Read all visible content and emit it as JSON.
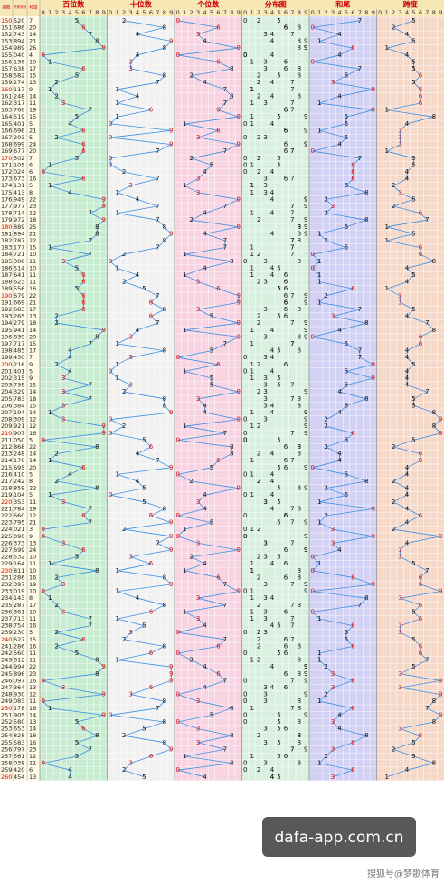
{
  "header": {
    "issue": "期数",
    "number": "开奖号码",
    "sum": "和值",
    "sections": [
      "百位数",
      "十位数",
      "个位数",
      "分布图",
      "和尾",
      "跨度"
    ],
    "columns": [
      0,
      1,
      2,
      3,
      4,
      5,
      6,
      7,
      8,
      9
    ]
  },
  "rows": [
    [
      150,
      [
        5,
        2,
        0
      ],
      7,
      7,
      5
    ],
    [
      151,
      [
        6,
        8,
        6
      ],
      20,
      0,
      2
    ],
    [
      152,
      [
        7,
        4,
        3
      ],
      14,
      4,
      4
    ],
    [
      153,
      [
        8,
        9,
        4
      ],
      21,
      1,
      5
    ],
    [
      154,
      [
        9,
        8,
        9
      ],
      26,
      6,
      1
    ],
    [
      155,
      [
        0,
        4,
        0
      ],
      4,
      4,
      4
    ],
    [
      156,
      [
        1,
        3,
        6
      ],
      10,
      0,
      5
    ],
    [
      157,
      [
        6,
        3,
        8
      ],
      17,
      7,
      5
    ],
    [
      158,
      [
        5,
        8,
        2
      ],
      15,
      5,
      6
    ],
    [
      159,
      [
        2,
        7,
        4
      ],
      13,
      3,
      5
    ],
    [
      160,
      [
        1,
        1,
        7
      ],
      9,
      9,
      6
    ],
    [
      161,
      [
        2,
        4,
        8
      ],
      14,
      4,
      6
    ],
    [
      162,
      [
        3,
        1,
        7
      ],
      11,
      1,
      6
    ],
    [
      163,
      [
        7,
        6,
        6
      ],
      19,
      9,
      1
    ],
    [
      164,
      [
        5,
        1,
        9
      ],
      15,
      5,
      8
    ],
    [
      165,
      [
        4,
        0,
        1
      ],
      5,
      5,
      4
    ],
    [
      166,
      [
        6,
        9,
        6
      ],
      21,
      1,
      3
    ],
    [
      167,
      [
        2,
        0,
        3
      ],
      5,
      5,
      3
    ],
    [
      168,
      [
        6,
        9,
        9
      ],
      24,
      4,
      3
    ],
    [
      169,
      [
        6,
        7,
        7
      ],
      20,
      0,
      1
    ],
    [
      170,
      [
        5,
        0,
        2
      ],
      7,
      7,
      5
    ],
    [
      171,
      [
        1,
        0,
        5
      ],
      6,
      6,
      5
    ],
    [
      172,
      [
        0,
        2,
        4
      ],
      6,
      6,
      4
    ],
    [
      173,
      [
        6,
        7,
        3
      ],
      16,
      6,
      4
    ],
    [
      174,
      [
        1,
        3,
        1
      ],
      5,
      5,
      2
    ],
    [
      175,
      [
        4,
        1,
        3
      ],
      8,
      8,
      3
    ],
    [
      176,
      [
        9,
        4,
        9
      ],
      22,
      2,
      5
    ],
    [
      177,
      [
        9,
        7,
        7
      ],
      23,
      3,
      2
    ],
    [
      178,
      [
        7,
        1,
        4
      ],
      12,
      2,
      6
    ],
    [
      179,
      [
        9,
        7,
        2
      ],
      18,
      8,
      7
    ],
    [
      180,
      [
        8,
        8,
        9
      ],
      25,
      5,
      1
    ],
    [
      181,
      [
        8,
        9,
        4
      ],
      21,
      1,
      5
    ],
    [
      182,
      [
        7,
        8,
        7
      ],
      22,
      2,
      1
    ],
    [
      183,
      [
        1,
        7,
        7
      ],
      15,
      5,
      6
    ],
    [
      184,
      [
        7,
        2,
        1
      ],
      10,
      0,
      6
    ],
    [
      185,
      [
        3,
        0,
        8
      ],
      11,
      1,
      8
    ],
    [
      186,
      [
        5,
        1,
        4
      ],
      10,
      0,
      4
    ],
    [
      187,
      [
        6,
        4,
        1
      ],
      11,
      1,
      5
    ],
    [
      188,
      [
        6,
        2,
        3
      ],
      11,
      1,
      4
    ],
    [
      189,
      [
        5,
        5,
        6
      ],
      16,
      6,
      1
    ],
    [
      190,
      [
        6,
        7,
        9
      ],
      22,
      2,
      3
    ],
    [
      191,
      [
        6,
        6,
        9
      ],
      21,
      1,
      3
    ],
    [
      192,
      [
        6,
        8,
        3
      ],
      17,
      7,
      5
    ],
    [
      193,
      [
        2,
        6,
        5
      ],
      13,
      3,
      4
    ],
    [
      194,
      [
        2,
        7,
        9
      ],
      18,
      8,
      7
    ],
    [
      195,
      [
        9,
        4,
        1
      ],
      14,
      4,
      8
    ],
    [
      196,
      [
        8,
        3,
        9
      ],
      20,
      0,
      6
    ],
    [
      197,
      [
        7,
        1,
        7
      ],
      15,
      5,
      6
    ],
    [
      198,
      [
        4,
        8,
        5
      ],
      17,
      7,
      4
    ],
    [
      199,
      [
        4,
        3,
        0
      ],
      7,
      7,
      4
    ],
    [
      200,
      [
        2,
        1,
        6
      ],
      9,
      9,
      5
    ],
    [
      201,
      [
        4,
        0,
        1
      ],
      5,
      5,
      4
    ],
    [
      202,
      [
        3,
        1,
        5
      ],
      9,
      9,
      4
    ],
    [
      203,
      [
        7,
        3,
        5
      ],
      15,
      5,
      4
    ],
    [
      204,
      [
        3,
        2,
        9
      ],
      14,
      4,
      7
    ],
    [
      205,
      [
        7,
        8,
        3
      ],
      18,
      8,
      5
    ],
    [
      206,
      [
        3,
        8,
        4
      ],
      15,
      5,
      5
    ],
    [
      207,
      [
        1,
        9,
        4
      ],
      14,
      4,
      8
    ],
    [
      208,
      [
        3,
        0,
        9
      ],
      12,
      2,
      9
    ],
    [
      209,
      [
        9,
        2,
        1
      ],
      12,
      2,
      8
    ],
    [
      210,
      [
        9,
        0,
        7
      ],
      16,
      6,
      9
    ],
    [
      211,
      [
        0,
        5,
        0
      ],
      5,
      5,
      5
    ],
    [
      212,
      [
        8,
        6,
        8
      ],
      22,
      2,
      2
    ],
    [
      213,
      [
        2,
        4,
        8
      ],
      14,
      4,
      6
    ],
    [
      214,
      [
        1,
        7,
        6
      ],
      14,
      4,
      6
    ],
    [
      215,
      [
        6,
        9,
        5
      ],
      20,
      0,
      4
    ],
    [
      216,
      [
        4,
        1,
        0
      ],
      5,
      5,
      4
    ],
    [
      217,
      [
        2,
        4,
        2
      ],
      8,
      8,
      2
    ],
    [
      218,
      [
        8,
        5,
        9
      ],
      22,
      2,
      4
    ],
    [
      219,
      [
        1,
        0,
        4
      ],
      5,
      5,
      4
    ],
    [
      220,
      [
        3,
        5,
        3
      ],
      11,
      1,
      2
    ],
    [
      221,
      [
        7,
        8,
        4
      ],
      19,
      9,
      4
    ],
    [
      222,
      [
        6,
        6,
        0
      ],
      12,
      2,
      6
    ],
    [
      223,
      [
        7,
        9,
        5
      ],
      21,
      1,
      4
    ],
    [
      224,
      [
        0,
        2,
        1
      ],
      3,
      3,
      2
    ],
    [
      225,
      [
        0,
        9,
        0
      ],
      9,
      9,
      9
    ],
    [
      226,
      [
        3,
        7,
        3
      ],
      13,
      3,
      4
    ],
    [
      227,
      [
        6,
        9,
        9
      ],
      24,
      4,
      3
    ],
    [
      228,
      [
        5,
        3,
        2
      ],
      10,
      0,
      3
    ],
    [
      229,
      [
        1,
        6,
        4
      ],
      11,
      1,
      5
    ],
    [
      230,
      [
        8,
        1,
        1
      ],
      10,
      0,
      7
    ],
    [
      231,
      [
        2,
        8,
        6
      ],
      16,
      6,
      6
    ],
    [
      232,
      [
        3,
        9,
        7
      ],
      19,
      9,
      6
    ],
    [
      233,
      [
        0,
        1,
        9
      ],
      10,
      0,
      9
    ],
    [
      234,
      [
        1,
        4,
        3
      ],
      8,
      8,
      3
    ],
    [
      235,
      [
        2,
        8,
        7
      ],
      17,
      7,
      6
    ],
    [
      236,
      [
        3,
        6,
        1
      ],
      10,
      0,
      5
    ],
    [
      237,
      [
        7,
        1,
        3
      ],
      11,
      1,
      6
    ],
    [
      238,
      [
        7,
        5,
        4
      ],
      16,
      6,
      3
    ],
    [
      239,
      [
        2,
        3,
        0
      ],
      5,
      5,
      3
    ],
    [
      240,
      [
        6,
        2,
        7
      ],
      15,
      5,
      5
    ],
    [
      241,
      [
        2,
        8,
        6
      ],
      16,
      6,
      6
    ],
    [
      242,
      [
        5,
        6,
        0
      ],
      11,
      1,
      6
    ],
    [
      243,
      [
        8,
        1,
        2
      ],
      11,
      1,
      7
    ],
    [
      244,
      [
        9,
        9,
        4
      ],
      22,
      2,
      5
    ],
    [
      245,
      [
        8,
        9,
        6
      ],
      23,
      3,
      3
    ],
    [
      246,
      [
        0,
        9,
        7
      ],
      16,
      6,
      9
    ],
    [
      247,
      [
        3,
        6,
        4
      ],
      13,
      3,
      3
    ],
    [
      248,
      [
        9,
        3,
        0
      ],
      12,
      2,
      9
    ],
    [
      249,
      [
        0,
        8,
        3
      ],
      11,
      1,
      8
    ],
    [
      250,
      [
        1,
        7,
        8
      ],
      16,
      6,
      7
    ],
    [
      251,
      [
        9,
        0,
        5
      ],
      14,
      4,
      9
    ],
    [
      252,
      [
        5,
        8,
        0
      ],
      13,
      3,
      8
    ],
    [
      253,
      [
        6,
        5,
        3
      ],
      14,
      4,
      3
    ],
    [
      254,
      [
        8,
        2,
        8
      ],
      18,
      8,
      6
    ],
    [
      255,
      [
        5,
        8,
        3
      ],
      16,
      6,
      5
    ],
    [
      256,
      [
        7,
        9,
        7
      ],
      23,
      3,
      2
    ],
    [
      257,
      [
        5,
        6,
        1
      ],
      12,
      2,
      5
    ],
    [
      258,
      [
        0,
        3,
        8
      ],
      11,
      1,
      8
    ],
    [
      259,
      [
        4,
        2,
        0
      ],
      6,
      6,
      4
    ],
    [
      260,
      [
        4,
        5,
        4
      ],
      13,
      3,
      1
    ]
  ],
  "watermark": "dafa-app.com.cn",
  "credit": "搜狐号@梦歌体育"
}
